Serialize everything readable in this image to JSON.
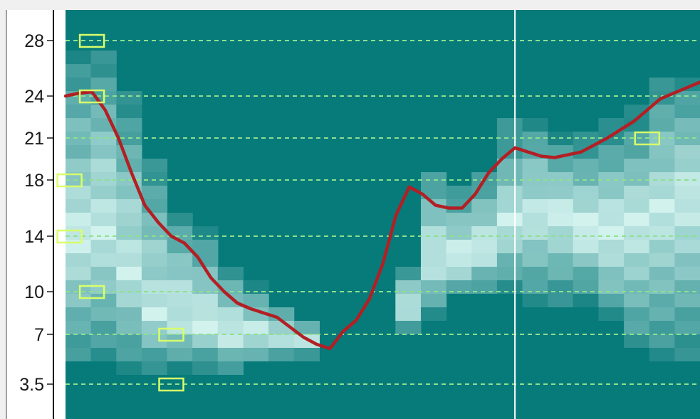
{
  "chart_data": {
    "type": "heatmap",
    "title": "",
    "xlabel": "",
    "ylabel": "",
    "y_ticks": [
      {
        "value": 3.5,
        "label": "3.5"
      },
      {
        "value": 7,
        "label": "7"
      },
      {
        "value": 10,
        "label": "10"
      },
      {
        "value": 14,
        "label": "14"
      },
      {
        "value": 18,
        "label": "18"
      },
      {
        "value": 21,
        "label": "21"
      },
      {
        "value": 24,
        "label": "24"
      },
      {
        "value": 28,
        "label": "28"
      }
    ],
    "ylim": [
      1.5,
      29.5
    ],
    "x_range": [
      0,
      24
    ],
    "grid": true,
    "colors": {
      "background": "#077a7a",
      "gridline": "#8ee08e",
      "line": "#b21f24",
      "marker": "#d8ff6a",
      "cursor": "#ffffff"
    },
    "column_profiles": [
      {
        "x": 0,
        "y_low": 5.0,
        "y_high": 26.8,
        "peak": 14.0
      },
      {
        "x": 1,
        "y_low": 5.0,
        "y_high": 27.5,
        "peak": 14.5
      },
      {
        "x": 2,
        "y_low": 4.5,
        "y_high": 24.0,
        "peak": 11.5
      },
      {
        "x": 3,
        "y_low": 4.5,
        "y_high": 19.5,
        "peak": 8.5
      },
      {
        "x": 4,
        "y_low": 4.5,
        "y_high": 16.0,
        "peak": 8.0
      },
      {
        "x": 5,
        "y_low": 4.5,
        "y_high": 14.5,
        "peak": 7.5
      },
      {
        "x": 6,
        "y_low": 4.5,
        "y_high": 12.0,
        "peak": 7.0
      },
      {
        "x": 7,
        "y_low": 5.0,
        "y_high": 10.5,
        "peak": 7.0
      },
      {
        "x": 8,
        "y_low": 5.0,
        "y_high": 9.0,
        "peak": 7.0
      },
      {
        "x": 9,
        "y_low": 5.5,
        "y_high": 8.0,
        "peak": 6.5
      },
      {
        "x": 10,
        "y_low": 0,
        "y_high": 0,
        "peak": 0
      },
      {
        "x": 11,
        "y_low": 0,
        "y_high": 0,
        "peak": 0
      },
      {
        "x": 12,
        "y_low": 0,
        "y_high": 0,
        "peak": 0
      },
      {
        "x": 13,
        "y_low": 7.0,
        "y_high": 12.0,
        "peak": 9.0
      },
      {
        "x": 14,
        "y_low": 8.0,
        "y_high": 19.0,
        "peak": 12.0
      },
      {
        "x": 15,
        "y_low": 9.5,
        "y_high": 17.5,
        "peak": 12.5
      },
      {
        "x": 16,
        "y_low": 10.0,
        "y_high": 19.0,
        "peak": 13.0
      },
      {
        "x": 17,
        "y_low": 10.0,
        "y_high": 22.0,
        "peak": 15.0
      },
      {
        "x": 18,
        "y_low": 9.0,
        "y_high": 22.0,
        "peak": 15.5
      },
      {
        "x": 19,
        "y_low": 9.0,
        "y_high": 21.0,
        "peak": 15.0
      },
      {
        "x": 20,
        "y_low": 9.0,
        "y_high": 21.0,
        "peak": 14.5
      },
      {
        "x": 21,
        "y_low": 7.5,
        "y_high": 22.0,
        "peak": 14.5
      },
      {
        "x": 22,
        "y_low": 6.0,
        "y_high": 23.0,
        "peak": 15.0
      },
      {
        "x": 23,
        "y_low": 5.5,
        "y_high": 25.0,
        "peak": 16.0
      },
      {
        "x": 24,
        "y_low": 5.5,
        "y_high": 25.5,
        "peak": 16.0
      }
    ],
    "series": [
      {
        "x": [
          0,
          0.5,
          1,
          1.5,
          2,
          2.5,
          3,
          3.5,
          4,
          4.5,
          5,
          5.5,
          6,
          6.5,
          7,
          7.5,
          8,
          8.5,
          9,
          9.5,
          10,
          10.5,
          11,
          11.5,
          12,
          12.5,
          13,
          13.5,
          14,
          14.5,
          15,
          15.5,
          16,
          16.5,
          17,
          17.5,
          18,
          18.5,
          19,
          19.5,
          20,
          20.5,
          21,
          21.5,
          22,
          22.5,
          23,
          23.5,
          24
        ],
        "values": [
          24.0,
          24.2,
          24.3,
          23.0,
          21.0,
          18.5,
          16.2,
          15.0,
          14.0,
          13.5,
          12.5,
          11.0,
          10.0,
          9.2,
          8.8,
          8.5,
          8.2,
          7.5,
          6.8,
          6.3,
          6.0,
          7.2,
          8.0,
          9.5,
          12.0,
          15.5,
          17.5,
          17.0,
          16.2,
          16.0,
          16.0,
          17.0,
          18.5,
          19.5,
          20.3,
          20.0,
          19.7,
          19.6,
          19.8,
          20.0,
          20.5,
          21.0,
          21.6,
          22.2,
          23.0,
          23.8,
          24.2,
          24.6,
          25.0
        ]
      }
    ],
    "markers": [
      {
        "x": 1.0,
        "y": 28
      },
      {
        "x": 1.0,
        "y": 24
      },
      {
        "x": 1.0,
        "y": 10
      },
      {
        "x": 4.0,
        "y": 7
      },
      {
        "x": 4.0,
        "y": 3.5
      },
      {
        "x": 0.15,
        "y": 18
      },
      {
        "x": 0.15,
        "y": 14
      },
      {
        "x": 22.0,
        "y": 21
      }
    ],
    "cursor_x": 17.0
  }
}
